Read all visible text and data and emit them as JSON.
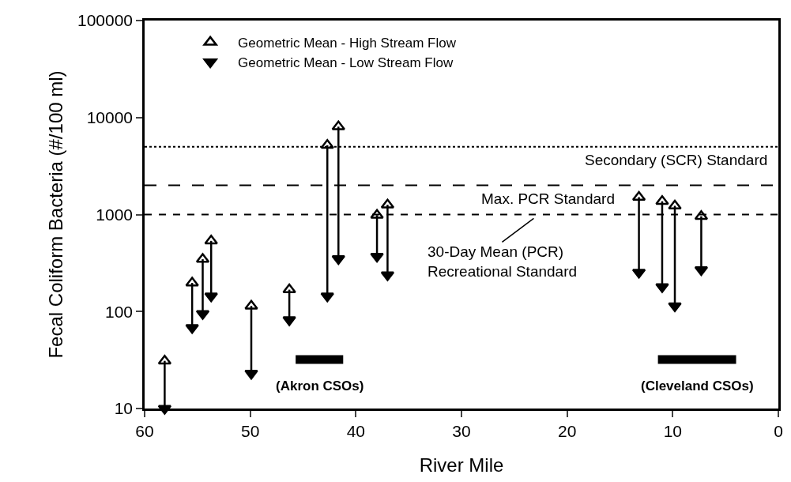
{
  "chart_data": {
    "type": "scatter",
    "xlabel": "River Mile",
    "ylabel": "Fecal Coliform Bacteria (#/100 ml)",
    "x": [
      58.1,
      55.5,
      54.5,
      53.7,
      49.9,
      46.3,
      42.7,
      41.65,
      38.0,
      37.0,
      13.2,
      11.0,
      9.8,
      7.3
    ],
    "series": [
      {
        "name": "Geometric Mean - High Stream Flow",
        "color": "#000000",
        "marker": "triangle-up-open",
        "values": [
          31,
          197,
          346,
          535,
          114,
          168,
          5180,
          8050,
          985,
          1260,
          1510,
          1370,
          1230,
          960
        ]
      },
      {
        "name": "Geometric Mean - Low Stream Flow",
        "color": "#000000",
        "marker": "triangle-down",
        "values": [
          10,
          68,
          95,
          144,
          23,
          82,
          144,
          350,
          370,
          238,
          253,
          180,
          114,
          269
        ],
        "errors": [
          [
            10,
            31
          ],
          [
            68,
            197
          ],
          [
            95,
            346
          ],
          [
            144,
            535
          ],
          [
            23,
            114
          ],
          [
            82,
            168
          ],
          [
            144,
            5180
          ],
          [
            350,
            8050
          ],
          [
            370,
            985
          ],
          [
            238,
            1260
          ],
          [
            253,
            1510
          ],
          [
            180,
            1370
          ],
          [
            114,
            1230
          ],
          [
            269,
            960
          ]
        ]
      },
      {
        "type": "line",
        "color": "#000000",
        "x": [
          45.7,
          41.2
        ],
        "values": [
          32,
          32
        ]
      },
      {
        "type": "line",
        "color": "#000000",
        "x": [
          11.4,
          4.0
        ],
        "values": [
          32,
          32
        ]
      }
    ],
    "annotations": [
      {
        "text": "(Akron CSOs)",
        "x": 43.45,
        "y": 32
      },
      {
        "text": "(Cleveland CSOs)",
        "x": 7.7,
        "y": 32
      }
    ],
    "log": "y",
    "xlim": [
      60,
      0
    ],
    "xticks": [
      60,
      50,
      40,
      30,
      20,
      10,
      0
    ],
    "ylim": [
      10,
      100000
    ],
    "yticks": [
      10,
      100,
      1000,
      10000,
      100000
    ],
    "ref_lines": [
      {
        "axis": "y",
        "value": 5000,
        "label": "Secondary (SCR) Standard",
        "line_style": "dotted",
        "color": "#000000"
      },
      {
        "axis": "y",
        "value": 2000,
        "label": "Max. PCR Standard",
        "line_style": "dashed",
        "color": "#000000"
      },
      {
        "axis": "y",
        "value": 1000,
        "label": "30-Day Mean (PCR)\nRecreational Standard",
        "line_style": "dashdot",
        "color": "#000000"
      }
    ],
    "legend": "top left"
  }
}
